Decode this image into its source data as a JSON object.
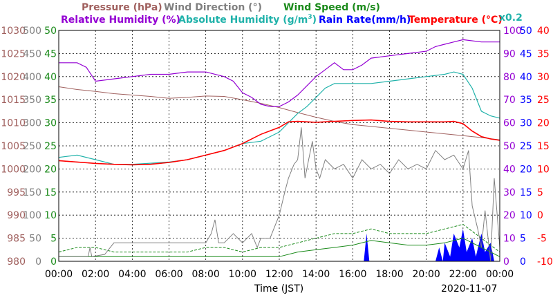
{
  "chart_data": {
    "type": "line",
    "date": "2020-11-07",
    "xlabel": "Time (JST)",
    "x_ticks": [
      "00:00",
      "02:00",
      "04:00",
      "06:00",
      "08:00",
      "10:00",
      "12:00",
      "14:00",
      "16:00",
      "18:00",
      "20:00",
      "22:00",
      "00:00"
    ],
    "x_range_hours": [
      0,
      24
    ],
    "headers": {
      "pressure": "Pressure (hPa)",
      "wind_direction": "Wind Direction (°)",
      "wind_speed": "Wind Speed (m/s)",
      "relative_humidity": "Relative Humidity (%)",
      "absolute_humidity_prefix": "Absolute Humidity (g/m",
      "absolute_humidity_sup": "3",
      "absolute_humidity_suffix": ")",
      "rain_rate": "Rain Rate(mm/h)",
      "temperature": "Temperature (°C)",
      "abs_scale_note": "x0.2"
    },
    "axes": {
      "pressure": {
        "min": 980,
        "max": 1030,
        "ticks": [
          "980",
          "985",
          "990",
          "995",
          "1000",
          "1005",
          "1010",
          "1015",
          "1020",
          "1025",
          "1030"
        ]
      },
      "wind_direction": {
        "min": 0,
        "max": 500,
        "ticks": [
          "0",
          "50",
          "100",
          "150",
          "200",
          "250",
          "300",
          "350",
          "400",
          "450",
          "500"
        ]
      },
      "wind_speed": {
        "min": 0,
        "max": 50,
        "ticks": [
          "0",
          "5",
          "10",
          "15",
          "20",
          "25",
          "30",
          "35",
          "40",
          "45",
          "50"
        ]
      },
      "relative_humidity": {
        "min": 0,
        "max": 100,
        "ticks": [
          "0",
          "10",
          "20",
          "30",
          "40",
          "50",
          "60",
          "70",
          "80",
          "90",
          "100"
        ]
      },
      "rain_rate": {
        "min": 0,
        "max": 50,
        "ticks": [
          "0",
          "5",
          "10",
          "15",
          "20",
          "25",
          "30",
          "35",
          "40",
          "45",
          "50"
        ]
      },
      "temperature": {
        "min": -10,
        "max": 40,
        "ticks": [
          "-10",
          "-5",
          "0",
          "5",
          "10",
          "15",
          "20",
          "25",
          "30",
          "35",
          "40"
        ]
      }
    },
    "colors": {
      "pressure": "#a0605e",
      "wind_direction": "#808080",
      "wind_speed": "#1a8a1a",
      "relative_humidity": "#9400d3",
      "absolute_humidity": "#20b2aa",
      "rain_rate": "#0000ff",
      "temperature": "#ff0000",
      "temp_dark": "#8b0000",
      "grid": "#000000"
    },
    "series": {
      "pressure_hpa": [
        [
          0,
          1017.8
        ],
        [
          1,
          1017.2
        ],
        [
          2,
          1016.8
        ],
        [
          3,
          1016.3
        ],
        [
          4,
          1016.0
        ],
        [
          5,
          1015.7
        ],
        [
          6,
          1015.3
        ],
        [
          7,
          1015.5
        ],
        [
          8,
          1015.8
        ],
        [
          9,
          1015.7
        ],
        [
          10,
          1015.0
        ],
        [
          11,
          1014.2
        ],
        [
          12,
          1013.3
        ],
        [
          13,
          1012.2
        ],
        [
          14,
          1011.2
        ],
        [
          15,
          1010.3
        ],
        [
          16,
          1009.6
        ],
        [
          17,
          1009.2
        ],
        [
          18,
          1008.8
        ],
        [
          19,
          1008.4
        ],
        [
          20,
          1008.0
        ],
        [
          21,
          1007.6
        ],
        [
          22,
          1007.2
        ],
        [
          23,
          1006.8
        ],
        [
          24,
          1006.3
        ]
      ],
      "relative_humidity_pct": [
        [
          0,
          86
        ],
        [
          1,
          86
        ],
        [
          1.5,
          84
        ],
        [
          2,
          78
        ],
        [
          3,
          79
        ],
        [
          4,
          80
        ],
        [
          5,
          81
        ],
        [
          6,
          81
        ],
        [
          7,
          82
        ],
        [
          8,
          82
        ],
        [
          9,
          80
        ],
        [
          9.5,
          78
        ],
        [
          10,
          73
        ],
        [
          10.5,
          71
        ],
        [
          11,
          68
        ],
        [
          11.5,
          67
        ],
        [
          12,
          67
        ],
        [
          12.5,
          69
        ],
        [
          13,
          72
        ],
        [
          13.5,
          76
        ],
        [
          14,
          80
        ],
        [
          14.5,
          83
        ],
        [
          15,
          86
        ],
        [
          15.5,
          83
        ],
        [
          16,
          83
        ],
        [
          16.5,
          85
        ],
        [
          17,
          88
        ],
        [
          18,
          89
        ],
        [
          19,
          90
        ],
        [
          20,
          91
        ],
        [
          20.5,
          93
        ],
        [
          21,
          94
        ],
        [
          21.5,
          95
        ],
        [
          22,
          96
        ],
        [
          23,
          95
        ],
        [
          24,
          95
        ]
      ],
      "absolute_humidity_scaled": [
        [
          0,
          45
        ],
        [
          1,
          46
        ],
        [
          2,
          44
        ],
        [
          3,
          42
        ],
        [
          4,
          42
        ],
        [
          5,
          42.5
        ],
        [
          6,
          43
        ],
        [
          7,
          44
        ],
        [
          8,
          46
        ],
        [
          9,
          48
        ],
        [
          10,
          51
        ],
        [
          11,
          52
        ],
        [
          12,
          56
        ],
        [
          12.5,
          60
        ],
        [
          13,
          64
        ],
        [
          13.5,
          67
        ],
        [
          14,
          71
        ],
        [
          14.5,
          75
        ],
        [
          15,
          77
        ],
        [
          16,
          77
        ],
        [
          17,
          77
        ],
        [
          18,
          78
        ],
        [
          19,
          79
        ],
        [
          20,
          80
        ],
        [
          21,
          81
        ],
        [
          21.5,
          82
        ],
        [
          22,
          81
        ],
        [
          22.5,
          75
        ],
        [
          23,
          65
        ],
        [
          23.5,
          63
        ],
        [
          24,
          62
        ]
      ],
      "temperature_c": [
        [
          0,
          11.8
        ],
        [
          1,
          11.5
        ],
        [
          2,
          11.2
        ],
        [
          3,
          11.0
        ],
        [
          4,
          10.9
        ],
        [
          5,
          11.0
        ],
        [
          6,
          11.4
        ],
        [
          7,
          12.0
        ],
        [
          8,
          13.0
        ],
        [
          9,
          14.0
        ],
        [
          10,
          15.5
        ],
        [
          11,
          17.5
        ],
        [
          12,
          19.0
        ],
        [
          12.5,
          20.2
        ],
        [
          13,
          20.3
        ],
        [
          14,
          20.1
        ],
        [
          15,
          20.3
        ],
        [
          16,
          20.5
        ],
        [
          17,
          20.6
        ],
        [
          18,
          20.3
        ],
        [
          19,
          20.2
        ],
        [
          20,
          20.2
        ],
        [
          21,
          20.2
        ],
        [
          21.5,
          20.3
        ],
        [
          22,
          19.8
        ],
        [
          22.5,
          18.2
        ],
        [
          23,
          17.0
        ],
        [
          23.5,
          16.5
        ],
        [
          24,
          16.2
        ]
      ],
      "wind_direction_deg": [
        [
          0,
          10
        ],
        [
          1.6,
          10
        ],
        [
          1.7,
          30
        ],
        [
          1.8,
          10
        ],
        [
          2.5,
          15
        ],
        [
          3,
          40
        ],
        [
          4,
          40
        ],
        [
          5,
          40
        ],
        [
          6,
          40
        ],
        [
          7,
          40
        ],
        [
          8,
          40
        ],
        [
          8.3,
          60
        ],
        [
          8.5,
          90
        ],
        [
          8.7,
          40
        ],
        [
          9,
          40
        ],
        [
          9.5,
          60
        ],
        [
          10,
          40
        ],
        [
          10.5,
          60
        ],
        [
          10.8,
          30
        ],
        [
          11,
          50
        ],
        [
          11.5,
          50
        ],
        [
          12,
          100
        ],
        [
          12.3,
          150
        ],
        [
          12.5,
          180
        ],
        [
          12.8,
          210
        ],
        [
          13,
          220
        ],
        [
          13.2,
          290
        ],
        [
          13.4,
          180
        ],
        [
          13.6,
          220
        ],
        [
          13.8,
          260
        ],
        [
          14,
          200
        ],
        [
          14.2,
          180
        ],
        [
          14.5,
          220
        ],
        [
          15,
          200
        ],
        [
          15.5,
          210
        ],
        [
          16,
          180
        ],
        [
          16.5,
          220
        ],
        [
          17,
          200
        ],
        [
          17.5,
          210
        ],
        [
          18,
          190
        ],
        [
          18.5,
          220
        ],
        [
          19,
          200
        ],
        [
          19.5,
          210
        ],
        [
          20,
          200
        ],
        [
          20.5,
          240
        ],
        [
          21,
          220
        ],
        [
          21.5,
          230
        ],
        [
          22,
          200
        ],
        [
          22.3,
          240
        ],
        [
          22.5,
          120
        ],
        [
          22.8,
          70
        ],
        [
          23,
          30
        ],
        [
          23.2,
          110
        ],
        [
          23.5,
          0
        ],
        [
          23.7,
          180
        ],
        [
          24,
          30
        ]
      ],
      "wind_speed_avg": [
        [
          0,
          1
        ],
        [
          2,
          1
        ],
        [
          4,
          1
        ],
        [
          6,
          1
        ],
        [
          8,
          1
        ],
        [
          10,
          1
        ],
        [
          12,
          1
        ],
        [
          13,
          2
        ],
        [
          14,
          2.5
        ],
        [
          15,
          3
        ],
        [
          16,
          3.5
        ],
        [
          17,
          4.5
        ],
        [
          18,
          4
        ],
        [
          19,
          3.5
        ],
        [
          20,
          3.5
        ],
        [
          21,
          4
        ],
        [
          22,
          5
        ],
        [
          23,
          3
        ],
        [
          24,
          1
        ]
      ],
      "wind_speed_gust": [
        [
          0,
          2
        ],
        [
          1,
          3
        ],
        [
          2,
          3
        ],
        [
          3,
          2
        ],
        [
          4,
          2
        ],
        [
          5,
          2
        ],
        [
          6,
          2
        ],
        [
          7,
          2
        ],
        [
          8,
          3
        ],
        [
          9,
          3
        ],
        [
          10,
          2
        ],
        [
          11,
          3
        ],
        [
          12,
          3
        ],
        [
          13,
          4
        ],
        [
          14,
          5
        ],
        [
          15,
          6
        ],
        [
          16,
          6
        ],
        [
          17,
          7
        ],
        [
          18,
          6
        ],
        [
          19,
          6
        ],
        [
          20,
          6
        ],
        [
          21,
          7
        ],
        [
          22,
          8
        ],
        [
          23,
          5
        ],
        [
          24,
          2
        ]
      ],
      "rain_rate_mmh": [
        [
          0,
          0
        ],
        [
          16.6,
          0
        ],
        [
          16.75,
          6
        ],
        [
          16.9,
          0
        ],
        [
          20.5,
          0
        ],
        [
          20.7,
          3
        ],
        [
          20.9,
          0
        ],
        [
          21,
          4
        ],
        [
          21.3,
          1
        ],
        [
          21.5,
          6
        ],
        [
          21.8,
          3
        ],
        [
          22,
          7
        ],
        [
          22.2,
          2
        ],
        [
          22.5,
          5
        ],
        [
          22.7,
          1
        ],
        [
          23,
          6
        ],
        [
          23.2,
          2
        ],
        [
          23.5,
          4
        ],
        [
          23.7,
          0
        ],
        [
          24,
          0
        ]
      ]
    }
  }
}
